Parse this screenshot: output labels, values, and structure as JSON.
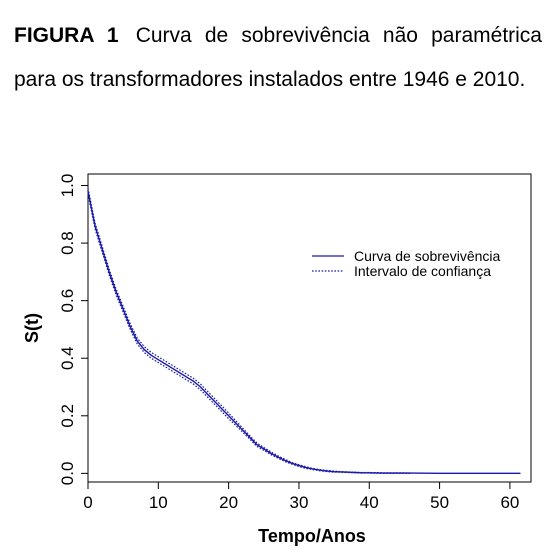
{
  "caption": {
    "label": "FIGURA 1",
    "text": "Curva de sobrevivência não paramétrica para os transformadores instalados entre 1946 e 2010."
  },
  "chart_data": {
    "type": "line",
    "xlabel": "Tempo/Anos",
    "ylabel": "S(t)",
    "xlim": [
      0,
      63
    ],
    "ylim": [
      -0.03,
      1.04
    ],
    "x_ticks": [
      0,
      10,
      20,
      30,
      40,
      50,
      60
    ],
    "y_ticks": [
      "0.0",
      "0.2",
      "0.4",
      "0.6",
      "0.8",
      "1.0"
    ],
    "grid": false,
    "legend_position": "top-right",
    "line_color": "#1a1aa8",
    "series": [
      {
        "name": "Curva de sobrevivência",
        "style": "solid",
        "x": [
          0,
          1,
          2,
          3,
          4,
          5,
          6,
          7,
          8,
          9,
          10,
          11,
          12,
          13,
          14,
          15,
          16,
          17,
          18,
          19,
          20,
          21,
          22,
          23,
          24,
          25,
          26,
          27,
          28,
          29,
          30,
          31,
          32,
          33,
          34,
          35,
          36,
          37,
          38,
          39,
          40,
          42,
          44,
          46,
          50,
          55,
          61.5
        ],
        "y": [
          0.98,
          0.86,
          0.78,
          0.7,
          0.63,
          0.57,
          0.51,
          0.46,
          0.43,
          0.41,
          0.395,
          0.38,
          0.365,
          0.35,
          0.335,
          0.32,
          0.3,
          0.275,
          0.25,
          0.225,
          0.2,
          0.175,
          0.15,
          0.125,
          0.1,
          0.085,
          0.07,
          0.057,
          0.045,
          0.035,
          0.027,
          0.02,
          0.015,
          0.011,
          0.008,
          0.006,
          0.005,
          0.004,
          0.003,
          0.002,
          0.002,
          0.001,
          0.001,
          0.001,
          0.0,
          0.0,
          0.0
        ]
      },
      {
        "name": "Intervalo de confiança",
        "style": "dotted",
        "bound": "upper",
        "x": [
          0,
          1,
          2,
          3,
          4,
          5,
          6,
          7,
          8,
          9,
          10,
          11,
          12,
          13,
          14,
          15,
          16,
          17,
          18,
          19,
          20,
          21,
          22,
          23,
          24,
          25,
          26,
          27,
          28,
          29,
          30,
          31,
          32,
          33,
          34,
          35,
          36,
          37,
          38,
          39,
          40,
          42,
          44,
          46
        ],
        "y": [
          0.99,
          0.87,
          0.79,
          0.71,
          0.64,
          0.58,
          0.52,
          0.47,
          0.44,
          0.42,
          0.405,
          0.39,
          0.375,
          0.36,
          0.345,
          0.33,
          0.31,
          0.285,
          0.26,
          0.235,
          0.21,
          0.183,
          0.157,
          0.131,
          0.106,
          0.09,
          0.075,
          0.061,
          0.049,
          0.038,
          0.03,
          0.023,
          0.017,
          0.013,
          0.01,
          0.008,
          0.006,
          0.005,
          0.004,
          0.003,
          0.003,
          0.002,
          0.002,
          0.001
        ]
      },
      {
        "name": "Intervalo de confiança",
        "style": "dotted",
        "bound": "lower",
        "x": [
          0,
          1,
          2,
          3,
          4,
          5,
          6,
          7,
          8,
          9,
          10,
          11,
          12,
          13,
          14,
          15,
          16,
          17,
          18,
          19,
          20,
          21,
          22,
          23,
          24,
          25,
          26,
          27,
          28,
          29,
          30,
          31,
          32,
          33,
          34,
          35,
          36,
          37,
          38,
          39,
          40,
          42,
          44,
          46
        ],
        "y": [
          0.97,
          0.85,
          0.77,
          0.69,
          0.62,
          0.56,
          0.5,
          0.45,
          0.42,
          0.4,
          0.385,
          0.37,
          0.355,
          0.34,
          0.325,
          0.31,
          0.29,
          0.265,
          0.24,
          0.215,
          0.19,
          0.167,
          0.143,
          0.119,
          0.094,
          0.08,
          0.065,
          0.053,
          0.041,
          0.032,
          0.024,
          0.017,
          0.013,
          0.009,
          0.006,
          0.004,
          0.004,
          0.003,
          0.002,
          0.001,
          0.001,
          0.0,
          0.0,
          0.0
        ]
      }
    ],
    "legend": [
      {
        "label": "Curva de sobrevivência",
        "style": "solid"
      },
      {
        "label": "Intervalo de confiança",
        "style": "dotted"
      }
    ]
  }
}
